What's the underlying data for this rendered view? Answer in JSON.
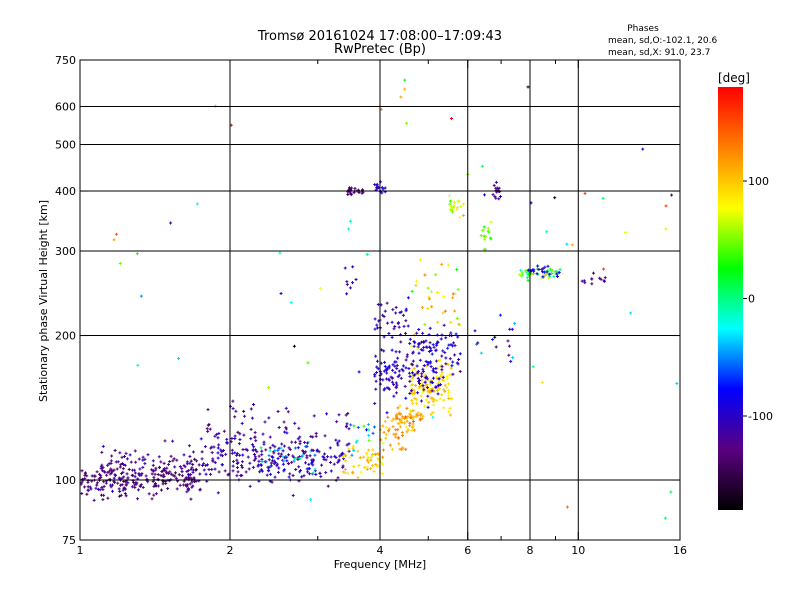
{
  "chart_data": {
    "type": "scatter",
    "title": "Tromsø 20161024  17:08:00–17:09:43",
    "subtitle": "RwPretec (Bp)",
    "xlabel": "Frequency [MHz]",
    "ylabel": "Stationary phase Virtual Height [km]",
    "x_scale": "log",
    "y_scale": "log",
    "xlim": [
      1,
      16
    ],
    "ylim": [
      75,
      750
    ],
    "grid": true,
    "x_ticks": [
      1,
      2,
      4,
      6,
      8,
      10,
      16
    ],
    "x_tick_labels": [
      "1",
      "2",
      "4",
      "6",
      "8",
      "10",
      "16"
    ],
    "x_minor_ticks": [
      3,
      5,
      7,
      9
    ],
    "y_ticks": [
      75,
      100,
      200,
      300,
      400,
      500,
      600,
      750
    ],
    "y_tick_labels": [
      "75",
      "100",
      "200",
      "300",
      "400",
      "500",
      "600",
      "750"
    ],
    "color_variable": "phase",
    "colorbar": {
      "title": "[deg]",
      "range": [
        -180,
        180
      ],
      "ticks": [
        100,
        0,
        -100
      ],
      "tick_labels": [
        "100",
        "0",
        "-100"
      ],
      "colormap": [
        "#000000",
        "#5a007f",
        "#0000ff",
        "#00ffff",
        "#00ff00",
        "#ffff00",
        "#ff7f00",
        "#ff0000"
      ]
    },
    "stats": {
      "heading": "Phases",
      "o_line": "mean, sd,O:-102.1, 20.6",
      "x_line": "mean, sd,X:  91.0, 23.7"
    },
    "clusters": [
      {
        "x_range": [
          1.0,
          1.75
        ],
        "y_mean": 100,
        "y_spread": 4,
        "phase_mean": -130,
        "phase_sd": 12,
        "count": 220
      },
      {
        "x_range": [
          1.1,
          1.7
        ],
        "y_mean": 106,
        "y_spread": 6,
        "phase_mean": -125,
        "phase_sd": 12,
        "count": 90
      },
      {
        "x_range": [
          1.75,
          3.4
        ],
        "y_mean": 110,
        "y_spread": 6,
        "phase_mean": -110,
        "phase_sd": 15,
        "count": 220
      },
      {
        "x_range": [
          2.3,
          3.0
        ],
        "y_mean": 112,
        "y_spread": 4,
        "phase_mean": -40,
        "phase_sd": 25,
        "count": 30
      },
      {
        "x_range": [
          1.8,
          3.5
        ],
        "y_mean": 125,
        "y_spread": 10,
        "phase_mean": -120,
        "phase_sd": 15,
        "count": 90
      },
      {
        "x_range": [
          3.3,
          4.1
        ],
        "y_mean": 110,
        "y_spread": 4,
        "phase_mean": 95,
        "phase_sd": 15,
        "count": 55
      },
      {
        "x_range": [
          3.3,
          3.9
        ],
        "y_mean": 125,
        "y_spread": 6,
        "phase_mean": -20,
        "phase_sd": 40,
        "count": 15
      },
      {
        "x_range": [
          4.0,
          4.7
        ],
        "y_mean": 125,
        "y_spread": 6,
        "phase_mean": 115,
        "phase_sd": 15,
        "count": 40
      },
      {
        "x_range": [
          4.3,
          4.9
        ],
        "y_mean": 135,
        "y_spread": 5,
        "phase_mean": 120,
        "phase_sd": 15,
        "count": 45
      },
      {
        "x_range": [
          4.6,
          5.6
        ],
        "y_mean": 155,
        "y_spread": 10,
        "phase_mean": 95,
        "phase_sd": 12,
        "count": 110
      },
      {
        "x_range": [
          3.9,
          5.3
        ],
        "y_mean": 165,
        "y_spread": 10,
        "phase_mean": -100,
        "phase_sd": 12,
        "count": 120
      },
      {
        "x_range": [
          4.5,
          5.8
        ],
        "y_mean": 185,
        "y_spread": 12,
        "phase_mean": -100,
        "phase_sd": 15,
        "count": 90
      },
      {
        "x_range": [
          3.9,
          4.6
        ],
        "y_mean": 215,
        "y_spread": 12,
        "phase_mean": -110,
        "phase_sd": 12,
        "count": 40
      },
      {
        "x_range": [
          4.6,
          5.8
        ],
        "y_mean": 240,
        "y_spread": 25,
        "phase_mean": 80,
        "phase_sd": 40,
        "count": 35
      },
      {
        "x_range": [
          3.4,
          3.7
        ],
        "y_mean": 400,
        "y_spread": 4,
        "phase_mean": -140,
        "phase_sd": 12,
        "count": 25
      },
      {
        "x_range": [
          3.9,
          4.1
        ],
        "y_mean": 405,
        "y_spread": 6,
        "phase_mean": -100,
        "phase_sd": 10,
        "count": 15
      },
      {
        "x_range": [
          5.5,
          5.9
        ],
        "y_mean": 375,
        "y_spread": 10,
        "phase_mean": 70,
        "phase_sd": 15,
        "count": 20
      },
      {
        "x_range": [
          6.3,
          6.7
        ],
        "y_mean": 320,
        "y_spread": 10,
        "phase_mean": 50,
        "phase_sd": 15,
        "count": 15
      },
      {
        "x_range": [
          6.7,
          7.0
        ],
        "y_mean": 400,
        "y_spread": 8,
        "phase_mean": -120,
        "phase_sd": 15,
        "count": 15
      },
      {
        "x_range": [
          7.6,
          9.2
        ],
        "y_mean": 270,
        "y_spread": 4,
        "phase_mean": 30,
        "phase_sd": 30,
        "count": 45
      },
      {
        "x_range": [
          8.0,
          9.2
        ],
        "y_mean": 270,
        "y_spread": 4,
        "phase_mean": -95,
        "phase_sd": 15,
        "count": 20
      },
      {
        "x_range": [
          10.0,
          11.5
        ],
        "y_mean": 262,
        "y_spread": 4,
        "phase_mean": -120,
        "phase_sd": 20,
        "count": 12
      },
      {
        "x_range": [
          6.2,
          7.5
        ],
        "y_mean": 190,
        "y_spread": 10,
        "phase_mean": -80,
        "phase_sd": 40,
        "count": 15
      },
      {
        "x_range": [
          3.4,
          3.6
        ],
        "y_mean": 270,
        "y_spread": 12,
        "phase_mean": -100,
        "phase_sd": 15,
        "count": 8
      },
      {
        "x_range": [
          4.4,
          4.6
        ],
        "y_mean": 620,
        "y_spread": 50,
        "phase_mean": 40,
        "phase_sd": 60,
        "count": 4
      },
      {
        "x_range": [
          1.0,
          16.0
        ],
        "y_mean": 280,
        "y_spread": 160,
        "phase_mean": 0,
        "phase_sd": 110,
        "count": 55
      }
    ]
  }
}
